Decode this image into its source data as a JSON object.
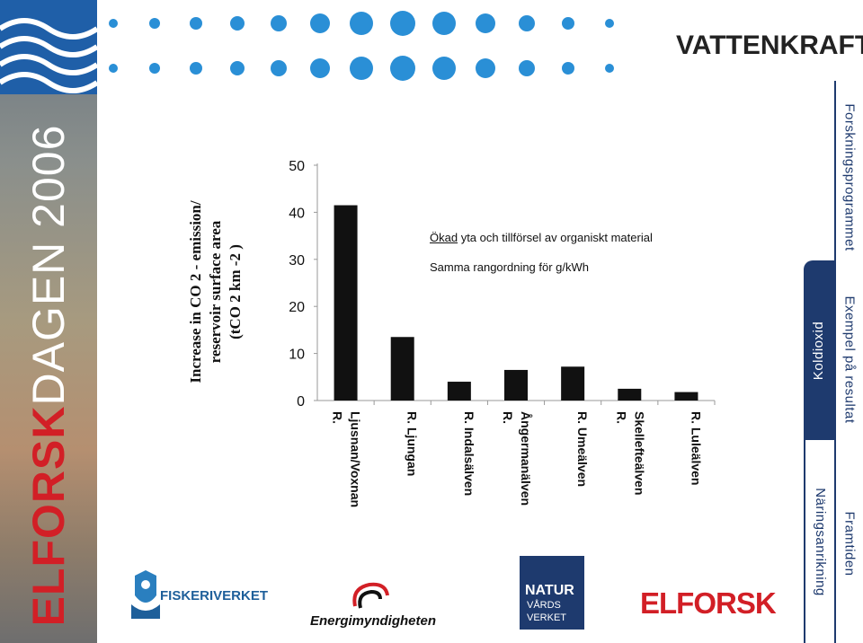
{
  "banner": {
    "year_text": "ELFORSK DAGEN 2006",
    "part_red": "ELFORSK",
    "part_white": "DAGEN 2006"
  },
  "header": {
    "brand_title": "VATTENKRAFT"
  },
  "tabs": {
    "outer": [
      {
        "label": "Forskningsprogrammet"
      },
      {
        "label": "Exempel på resultat"
      },
      {
        "label": "Framtiden"
      }
    ],
    "inner": [
      {
        "label": "Koldioxid",
        "active": true
      },
      {
        "label": "Näringsanrikning",
        "active": false
      }
    ]
  },
  "notes": {
    "line1_underlined": "Ökad",
    "line1_rest": " yta och tillförsel av organiskt material",
    "line2": "Samma rangordning för g/kWh"
  },
  "chart_data": {
    "type": "bar",
    "ylabel_lines": [
      "Increase in CO 2 - emission/",
      "reservoir surface area",
      "(tCO 2 km -2 )"
    ],
    "ylim": [
      0,
      50
    ],
    "yticks": [
      "0",
      "10",
      "20",
      "30",
      "40",
      "50"
    ],
    "categories": [
      [
        "R.",
        "Ljusnan/Voxnan"
      ],
      [
        "R. Ljungan"
      ],
      [
        "R. Indalsälven"
      ],
      [
        "R.",
        "Ångermanälven"
      ],
      [
        "R. Umeälven"
      ],
      [
        "R.",
        "Skellefteälven"
      ],
      [
        "R. Luleälven"
      ]
    ],
    "values": [
      41.5,
      13.5,
      4,
      6.5,
      7.2,
      2.5,
      1.8
    ],
    "color": "#111111"
  },
  "logos": {
    "fiskeriverket": "FISKERIVERKET",
    "energimyndigheten": "Energimyndigheten",
    "naturvardsverket": [
      "NATUR",
      "VÅRDS",
      "VERKET"
    ],
    "elforsk": "ELFORSK"
  },
  "colors": {
    "navy": "#1e3a6e",
    "red": "#d21f26",
    "dot": "#2a8fd6"
  }
}
